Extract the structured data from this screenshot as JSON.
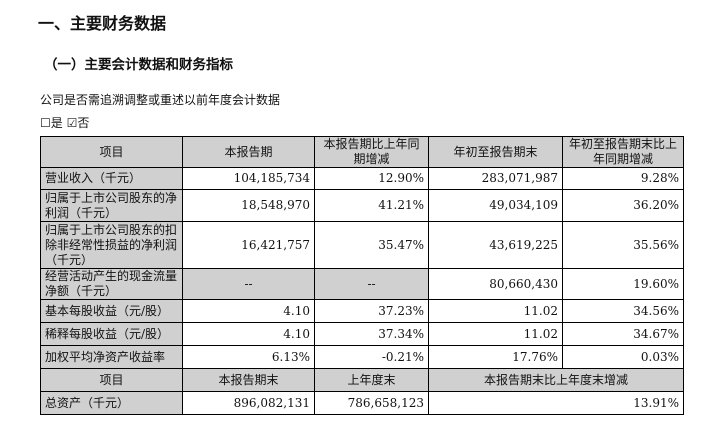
{
  "heading": "一、主要财务数据",
  "subheading": "（一）主要会计数据和财务指标",
  "question": "公司是否需追溯调整或重述以前年度会计数据",
  "options": {
    "yes_box": "☐",
    "yes": "是",
    "no_box": "☑",
    "no": "否",
    "selected": "否"
  },
  "table": {
    "headers": [
      "项目",
      "本报告期",
      "本报告期比上年同期增减",
      "年初至报告期末",
      "年初至报告期末比上年同期增减"
    ],
    "rows": [
      [
        "营业收入（千元）",
        "104,185,734",
        "12.90%",
        "283,071,987",
        "9.28%"
      ],
      [
        "归属于上市公司股东的净利润（千元）",
        "18,548,970",
        "41.21%",
        "49,034,109",
        "36.20%"
      ],
      [
        "归属于上市公司股东的扣除非经常性损益的净利润（千元）",
        "16,421,757",
        "35.47%",
        "43,619,225",
        "35.56%"
      ],
      [
        "经营活动产生的现金流量净额（千元）",
        "--",
        "--",
        "80,660,430",
        "19.60%"
      ],
      [
        "基本每股收益（元/股）",
        "4.10",
        "37.23%",
        "11.02",
        "34.56%"
      ],
      [
        "稀释每股收益（元/股）",
        "4.10",
        "37.34%",
        "11.02",
        "34.67%"
      ],
      [
        "加权平均净资产收益率",
        "6.13%",
        "-0.21%",
        "17.76%",
        "0.03%"
      ]
    ],
    "headers2": [
      "项目",
      "本报告期末",
      "上年度末",
      "本报告期末比上年度末增减"
    ],
    "rows2": [
      [
        "总资产（千元）",
        "896,082,131",
        "786,658,123",
        "13.91%"
      ]
    ]
  }
}
